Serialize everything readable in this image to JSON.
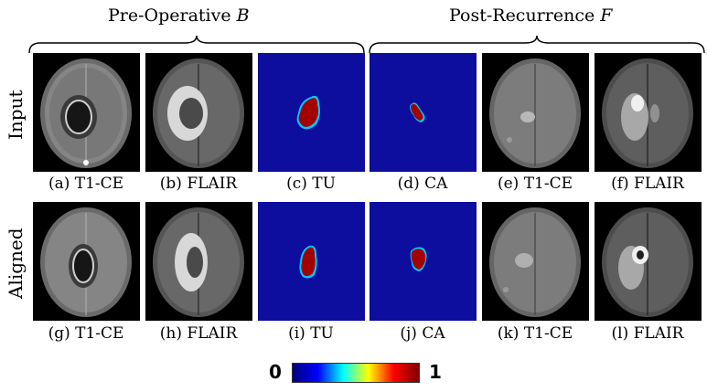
{
  "groups": {
    "pre_prefix": "Pre-Operative ",
    "pre_var": "B",
    "post_prefix": "Post-Recurrence ",
    "post_var": "F"
  },
  "rows": {
    "input": "Input",
    "aligned": "Aligned"
  },
  "captions": {
    "a": "(a) T1-CE",
    "b": "(b) FLAIR",
    "c": "(c) TU",
    "d": "(d) CA",
    "e": "(e) T1-CE",
    "f": "(f) FLAIR",
    "g": "(g) T1-CE",
    "h": "(h) FLAIR",
    "i": "(i) TU",
    "j": "(j) CA",
    "k": "(k) T1-CE",
    "l": "(l) FLAIR"
  },
  "colorbar": {
    "min_label": "0",
    "max_label": "1",
    "colors": [
      "#00007f",
      "#0000ff",
      "#00ffff",
      "#ffff00",
      "#ff0000",
      "#7f0000"
    ]
  },
  "colors": {
    "map_background": "#0d0d9e",
    "mask_core": "#a30000",
    "mask_edge": "#00c8ff"
  }
}
